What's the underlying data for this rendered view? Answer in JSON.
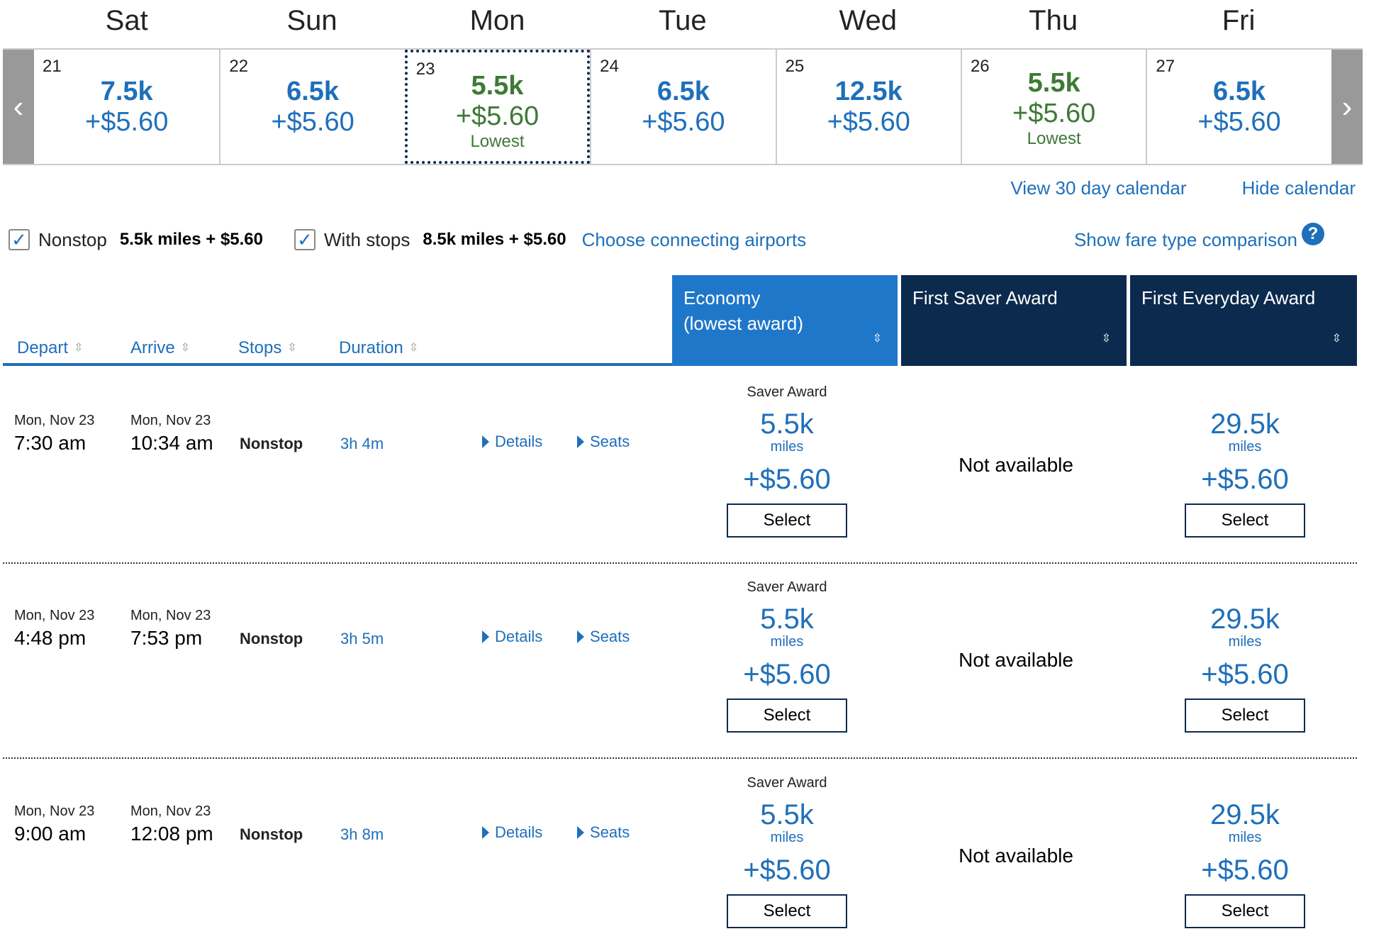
{
  "calendar": {
    "days": [
      {
        "name": "Sat",
        "date": "21",
        "miles": "7.5k",
        "price": "+$5.60",
        "note": "",
        "style": "blue"
      },
      {
        "name": "Sun",
        "date": "22",
        "miles": "6.5k",
        "price": "+$5.60",
        "note": "",
        "style": "blue"
      },
      {
        "name": "Mon",
        "date": "23",
        "miles": "5.5k",
        "price": "+$5.60",
        "note": "Lowest",
        "style": "green"
      },
      {
        "name": "Tue",
        "date": "24",
        "miles": "6.5k",
        "price": "+$5.60",
        "note": "",
        "style": "blue"
      },
      {
        "name": "Wed",
        "date": "25",
        "miles": "12.5k",
        "price": "+$5.60",
        "note": "",
        "style": "blue"
      },
      {
        "name": "Thu",
        "date": "26",
        "miles": "5.5k",
        "price": "+$5.60",
        "note": "Lowest",
        "style": "green"
      },
      {
        "name": "Fri",
        "date": "27",
        "miles": "6.5k",
        "price": "+$5.60",
        "note": "",
        "style": "blue"
      }
    ],
    "prev_arrow": "‹",
    "next_arrow": "›",
    "view_30_day": "View 30 day calendar",
    "hide_calendar": "Hide calendar"
  },
  "filters": {
    "nonstop_label": "Nonstop",
    "nonstop_value": "5.5k miles + $5.60",
    "with_stops_label": "With stops",
    "with_stops_value": "8.5k miles + $5.60",
    "connecting_link": "Choose connecting airports",
    "fare_compare_link": "Show fare type comparison",
    "help": "?",
    "check": "✓"
  },
  "table_header": {
    "depart": "Depart",
    "arrive": "Arrive",
    "stops": "Stops",
    "duration": "Duration",
    "sort_symbol": "⇳",
    "fare_economy_line1": "Economy",
    "fare_economy_line2": "(lowest award)",
    "fare_first_saver": "First Saver Award",
    "fare_first_everyday": "First Everyday Award"
  },
  "flights": [
    {
      "depart_date": "Mon, Nov 23",
      "depart_time": "7:30 am",
      "arrive_date": "Mon, Nov 23",
      "arrive_time": "10:34 am",
      "stops": "Nonstop",
      "duration": "3h 4m",
      "details": "Details",
      "seats": "Seats",
      "economy": {
        "type": "Saver Award",
        "miles": "5.5k",
        "miles_label": "miles",
        "price": "+$5.60",
        "select": "Select"
      },
      "first_saver": "Not available",
      "first_everyday": {
        "miles": "29.5k",
        "miles_label": "miles",
        "price": "+$5.60",
        "select": "Select"
      }
    },
    {
      "depart_date": "Mon, Nov 23",
      "depart_time": "4:48 pm",
      "arrive_date": "Mon, Nov 23",
      "arrive_time": "7:53 pm",
      "stops": "Nonstop",
      "duration": "3h 5m",
      "details": "Details",
      "seats": "Seats",
      "economy": {
        "type": "Saver Award",
        "miles": "5.5k",
        "miles_label": "miles",
        "price": "+$5.60",
        "select": "Select"
      },
      "first_saver": "Not available",
      "first_everyday": {
        "miles": "29.5k",
        "miles_label": "miles",
        "price": "+$5.60",
        "select": "Select"
      }
    },
    {
      "depart_date": "Mon, Nov 23",
      "depart_time": "9:00 am",
      "arrive_date": "Mon, Nov 23",
      "arrive_time": "12:08 pm",
      "stops": "Nonstop",
      "duration": "3h 8m",
      "details": "Details",
      "seats": "Seats",
      "economy": {
        "type": "Saver Award",
        "miles": "5.5k",
        "miles_label": "miles",
        "price": "+$5.60",
        "select": "Select"
      },
      "first_saver": "Not available",
      "first_everyday": {
        "miles": "29.5k",
        "miles_label": "miles",
        "price": "+$5.60",
        "select": "Select"
      }
    }
  ],
  "colors": {
    "link_blue": "#1f6fba",
    "lowest_green": "#3d7a35",
    "navy": "#0c2a4e",
    "economy_blue": "#1f77c9"
  }
}
